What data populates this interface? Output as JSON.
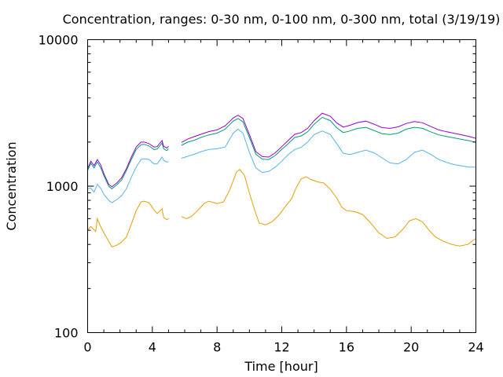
{
  "chart_data": {
    "type": "line",
    "title": "Concentration, ranges: 0-30 nm, 0-100 nm, 0-300 nm, total (3/19/19)",
    "xlabel": "Time [hour]",
    "ylabel": "Concentration",
    "xlim": [
      0,
      24
    ],
    "ylim": [
      100,
      10000
    ],
    "yscale": "log",
    "grid": false,
    "x_ticks": [
      0,
      4,
      8,
      12,
      16,
      20,
      24
    ],
    "x_tick_labels": [
      "0",
      "4",
      "8",
      "12",
      "16",
      "20",
      "24"
    ],
    "y_ticks": [
      100,
      1000,
      10000
    ],
    "y_tick_labels": [
      "100",
      "1000",
      "10000"
    ],
    "series": [
      {
        "color": "#e69f00",
        "segments": [
          [
            [
              0,
              500
            ],
            [
              0.2,
              530
            ],
            [
              0.5,
              490
            ],
            [
              0.6,
              600
            ],
            [
              0.8,
              530
            ],
            [
              1.0,
              480
            ],
            [
              1.3,
              420
            ],
            [
              1.5,
              385
            ],
            [
              1.8,
              395
            ],
            [
              2.1,
              415
            ],
            [
              2.4,
              450
            ],
            [
              2.7,
              550
            ],
            [
              3.0,
              680
            ],
            [
              3.3,
              780
            ],
            [
              3.5,
              790
            ],
            [
              3.8,
              770
            ],
            [
              4.1,
              690
            ],
            [
              4.3,
              650
            ],
            [
              4.6,
              700
            ],
            [
              4.7,
              610
            ],
            [
              4.9,
              590
            ],
            [
              5.0,
              600
            ]
          ],
          [
            [
              5.8,
              620
            ],
            [
              6.1,
              600
            ],
            [
              6.4,
              620
            ],
            [
              6.8,
              680
            ],
            [
              7.2,
              760
            ],
            [
              7.5,
              790
            ],
            [
              8.0,
              760
            ],
            [
              8.4,
              780
            ],
            [
              8.8,
              950
            ],
            [
              9.2,
              1250
            ],
            [
              9.4,
              1300
            ],
            [
              9.7,
              1180
            ],
            [
              10.0,
              900
            ],
            [
              10.3,
              700
            ],
            [
              10.6,
              560
            ],
            [
              11.0,
              545
            ],
            [
              11.4,
              570
            ],
            [
              11.8,
              630
            ],
            [
              12.2,
              720
            ],
            [
              12.6,
              820
            ],
            [
              12.9,
              980
            ],
            [
              13.2,
              1120
            ],
            [
              13.5,
              1160
            ],
            [
              13.8,
              1110
            ],
            [
              14.2,
              1070
            ],
            [
              14.6,
              1050
            ],
            [
              15.0,
              950
            ],
            [
              15.4,
              830
            ],
            [
              15.7,
              720
            ],
            [
              16.0,
              680
            ],
            [
              16.5,
              670
            ],
            [
              17.0,
              640
            ],
            [
              17.5,
              560
            ],
            [
              18.0,
              480
            ],
            [
              18.5,
              440
            ],
            [
              19.0,
              450
            ],
            [
              19.5,
              510
            ],
            [
              19.9,
              580
            ],
            [
              20.3,
              600
            ],
            [
              20.7,
              570
            ],
            [
              21.1,
              500
            ],
            [
              21.5,
              450
            ],
            [
              22.0,
              420
            ],
            [
              22.5,
              400
            ],
            [
              23.0,
              390
            ],
            [
              23.5,
              400
            ],
            [
              24.0,
              440
            ]
          ]
        ]
      },
      {
        "color": "#56b4e9",
        "segments": [
          [
            [
              0,
              960
            ],
            [
              0.2,
              970
            ],
            [
              0.4,
              910
            ],
            [
              0.6,
              1030
            ],
            [
              0.8,
              970
            ],
            [
              1.0,
              880
            ],
            [
              1.3,
              800
            ],
            [
              1.5,
              770
            ],
            [
              1.8,
              810
            ],
            [
              2.1,
              860
            ],
            [
              2.4,
              960
            ],
            [
              2.7,
              1150
            ],
            [
              3.0,
              1350
            ],
            [
              3.3,
              1520
            ],
            [
              3.5,
              1540
            ],
            [
              3.8,
              1520
            ],
            [
              4.1,
              1420
            ],
            [
              4.3,
              1420
            ],
            [
              4.6,
              1580
            ],
            [
              4.7,
              1500
            ],
            [
              4.9,
              1460
            ],
            [
              5.0,
              1470
            ]
          ],
          [
            [
              5.8,
              1550
            ],
            [
              6.2,
              1600
            ],
            [
              6.6,
              1650
            ],
            [
              7.0,
              1720
            ],
            [
              7.5,
              1780
            ],
            [
              8.0,
              1800
            ],
            [
              8.5,
              1850
            ],
            [
              9.0,
              2300
            ],
            [
              9.3,
              2450
            ],
            [
              9.6,
              2300
            ],
            [
              10.0,
              1700
            ],
            [
              10.4,
              1330
            ],
            [
              10.8,
              1240
            ],
            [
              11.2,
              1260
            ],
            [
              11.6,
              1350
            ],
            [
              12.0,
              1480
            ],
            [
              12.4,
              1640
            ],
            [
              12.8,
              1780
            ],
            [
              13.2,
              1840
            ],
            [
              13.6,
              2000
            ],
            [
              14.0,
              2250
            ],
            [
              14.5,
              2380
            ],
            [
              15.0,
              2250
            ],
            [
              15.4,
              1950
            ],
            [
              15.8,
              1680
            ],
            [
              16.2,
              1640
            ],
            [
              16.7,
              1700
            ],
            [
              17.2,
              1760
            ],
            [
              17.7,
              1690
            ],
            [
              18.2,
              1560
            ],
            [
              18.7,
              1440
            ],
            [
              19.2,
              1420
            ],
            [
              19.7,
              1520
            ],
            [
              20.2,
              1700
            ],
            [
              20.7,
              1760
            ],
            [
              21.2,
              1650
            ],
            [
              21.7,
              1520
            ],
            [
              22.2,
              1450
            ],
            [
              22.7,
              1400
            ],
            [
              23.2,
              1370
            ],
            [
              23.6,
              1350
            ],
            [
              24.0,
              1350
            ]
          ]
        ]
      },
      {
        "color": "#009e73",
        "segments": [
          [
            [
              0,
              1280
            ],
            [
              0.2,
              1430
            ],
            [
              0.4,
              1330
            ],
            [
              0.6,
              1460
            ],
            [
              0.8,
              1340
            ],
            [
              1.0,
              1180
            ],
            [
              1.3,
              1000
            ],
            [
              1.5,
              960
            ],
            [
              1.8,
              1020
            ],
            [
              2.1,
              1100
            ],
            [
              2.4,
              1280
            ],
            [
              2.7,
              1520
            ],
            [
              3.0,
              1780
            ],
            [
              3.3,
              1920
            ],
            [
              3.5,
              1930
            ],
            [
              3.8,
              1880
            ],
            [
              4.1,
              1780
            ],
            [
              4.3,
              1790
            ],
            [
              4.6,
              1970
            ],
            [
              4.7,
              1800
            ],
            [
              4.9,
              1750
            ],
            [
              5.0,
              1800
            ]
          ],
          [
            [
              5.8,
              1900
            ],
            [
              6.2,
              2000
            ],
            [
              6.6,
              2060
            ],
            [
              7.0,
              2150
            ],
            [
              7.5,
              2240
            ],
            [
              8.0,
              2300
            ],
            [
              8.5,
              2450
            ],
            [
              9.0,
              2780
            ],
            [
              9.3,
              2900
            ],
            [
              9.6,
              2750
            ],
            [
              10.0,
              2150
            ],
            [
              10.4,
              1650
            ],
            [
              10.8,
              1530
            ],
            [
              11.2,
              1520
            ],
            [
              11.6,
              1620
            ],
            [
              12.0,
              1780
            ],
            [
              12.4,
              1950
            ],
            [
              12.8,
              2150
            ],
            [
              13.2,
              2200
            ],
            [
              13.6,
              2350
            ],
            [
              14.0,
              2650
            ],
            [
              14.5,
              2950
            ],
            [
              15.0,
              2800
            ],
            [
              15.4,
              2500
            ],
            [
              15.8,
              2320
            ],
            [
              16.2,
              2380
            ],
            [
              16.7,
              2480
            ],
            [
              17.2,
              2520
            ],
            [
              17.7,
              2400
            ],
            [
              18.2,
              2280
            ],
            [
              18.7,
              2250
            ],
            [
              19.2,
              2300
            ],
            [
              19.7,
              2450
            ],
            [
              20.2,
              2520
            ],
            [
              20.7,
              2480
            ],
            [
              21.2,
              2350
            ],
            [
              21.7,
              2240
            ],
            [
              22.2,
              2180
            ],
            [
              22.7,
              2130
            ],
            [
              23.2,
              2080
            ],
            [
              23.6,
              2040
            ],
            [
              24.0,
              1990
            ]
          ]
        ]
      },
      {
        "color": "#9400d3",
        "segments": [
          [
            [
              0,
              1320
            ],
            [
              0.2,
              1480
            ],
            [
              0.4,
              1380
            ],
            [
              0.6,
              1520
            ],
            [
              0.8,
              1400
            ],
            [
              1.0,
              1220
            ],
            [
              1.3,
              1030
            ],
            [
              1.5,
              990
            ],
            [
              1.8,
              1050
            ],
            [
              2.1,
              1140
            ],
            [
              2.4,
              1320
            ],
            [
              2.7,
              1580
            ],
            [
              3.0,
              1850
            ],
            [
              3.3,
              2000
            ],
            [
              3.5,
              2000
            ],
            [
              3.8,
              1950
            ],
            [
              4.1,
              1850
            ],
            [
              4.3,
              1860
            ],
            [
              4.6,
              2050
            ],
            [
              4.7,
              1870
            ],
            [
              4.9,
              1820
            ],
            [
              5.0,
              1870
            ]
          ],
          [
            [
              5.8,
              1990
            ],
            [
              6.2,
              2100
            ],
            [
              6.6,
              2180
            ],
            [
              7.0,
              2260
            ],
            [
              7.5,
              2360
            ],
            [
              8.0,
              2420
            ],
            [
              8.5,
              2580
            ],
            [
              9.0,
              2920
            ],
            [
              9.3,
              3050
            ],
            [
              9.6,
              2900
            ],
            [
              10.0,
              2250
            ],
            [
              10.4,
              1720
            ],
            [
              10.8,
              1590
            ],
            [
              11.2,
              1580
            ],
            [
              11.6,
              1690
            ],
            [
              12.0,
              1860
            ],
            [
              12.4,
              2050
            ],
            [
              12.8,
              2260
            ],
            [
              13.2,
              2320
            ],
            [
              13.6,
              2480
            ],
            [
              14.0,
              2800
            ],
            [
              14.5,
              3150
            ],
            [
              15.0,
              3000
            ],
            [
              15.4,
              2700
            ],
            [
              15.8,
              2530
            ],
            [
              16.2,
              2600
            ],
            [
              16.7,
              2720
            ],
            [
              17.2,
              2780
            ],
            [
              17.7,
              2650
            ],
            [
              18.2,
              2510
            ],
            [
              18.7,
              2480
            ],
            [
              19.2,
              2540
            ],
            [
              19.7,
              2680
            ],
            [
              20.2,
              2760
            ],
            [
              20.7,
              2710
            ],
            [
              21.2,
              2560
            ],
            [
              21.7,
              2420
            ],
            [
              22.2,
              2350
            ],
            [
              22.7,
              2290
            ],
            [
              23.2,
              2230
            ],
            [
              23.6,
              2180
            ],
            [
              24.0,
              2120
            ]
          ]
        ]
      }
    ]
  }
}
